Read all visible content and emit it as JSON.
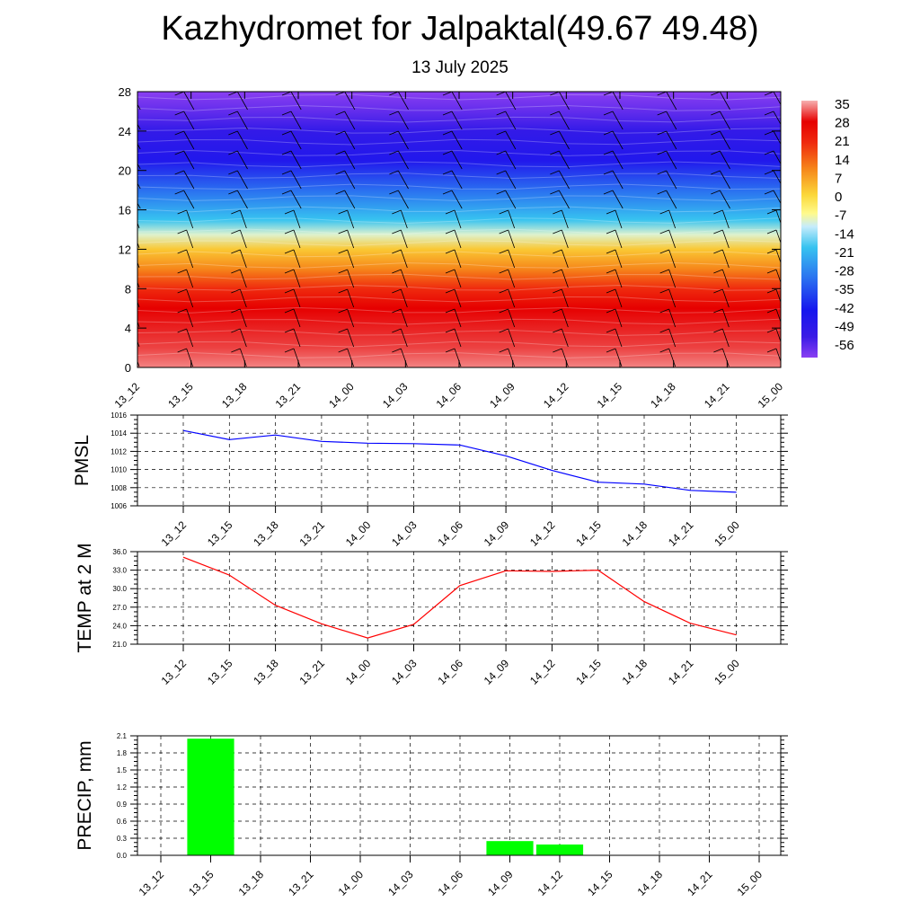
{
  "title": "Kazhydromet for Jalpaktal(49.67 49.48)",
  "subtitle": "13 July 2025",
  "time_labels": [
    "13_12",
    "13_15",
    "13_18",
    "13_21",
    "14_00",
    "14_03",
    "14_06",
    "14_09",
    "14_12",
    "14_15",
    "14_18",
    "14_21",
    "15_00"
  ],
  "chart_data": [
    {
      "type": "heatmap",
      "name": "cross-section",
      "x": [
        "13_12",
        "13_15",
        "13_18",
        "13_21",
        "14_00",
        "14_03",
        "14_06",
        "14_09",
        "14_12",
        "14_15",
        "14_18",
        "14_21",
        "15_00"
      ],
      "y_ticks": [
        0,
        4,
        8,
        12,
        16,
        20,
        24,
        28
      ],
      "ylim": [
        0,
        28
      ],
      "colorbar": {
        "labels": [
          "35",
          "28",
          "21",
          "14",
          "7",
          "0",
          "-7",
          "-14",
          "-21",
          "-28",
          "-35",
          "-42",
          "-49",
          "-56"
        ],
        "min": -60,
        "max": 38,
        "stops": [
          {
            "v": 38,
            "c": "#f7b0b0"
          },
          {
            "v": 30,
            "c": "#e60000"
          },
          {
            "v": 22,
            "c": "#ef2a0e"
          },
          {
            "v": 12,
            "c": "#f6861a"
          },
          {
            "v": 2,
            "c": "#fbd83a"
          },
          {
            "v": -5,
            "c": "#fffa8c"
          },
          {
            "v": -10,
            "c": "#c6ecfb"
          },
          {
            "v": -18,
            "c": "#37c3f0"
          },
          {
            "v": -30,
            "c": "#2a6ff0"
          },
          {
            "v": -42,
            "c": "#1616ee"
          },
          {
            "v": -52,
            "c": "#3a1be6"
          },
          {
            "v": -60,
            "c": "#8a3ff2"
          }
        ]
      },
      "vertical_profile": [
        {
          "level": 0,
          "value": 36
        },
        {
          "level": 2,
          "value": 33
        },
        {
          "level": 6,
          "value": 30
        },
        {
          "level": 8,
          "value": 22
        },
        {
          "level": 10,
          "value": 12
        },
        {
          "level": 12,
          "value": 4
        },
        {
          "level": 13.5,
          "value": -8
        },
        {
          "level": 15,
          "value": -18
        },
        {
          "level": 18,
          "value": -30
        },
        {
          "level": 21,
          "value": -45
        },
        {
          "level": 24,
          "value": -50
        },
        {
          "level": 26,
          "value": -56
        },
        {
          "level": 28,
          "value": -60
        }
      ]
    },
    {
      "type": "line",
      "ylabel": "PMSL",
      "categories": [
        "13_12",
        "13_15",
        "13_18",
        "13_21",
        "14_00",
        "14_03",
        "14_06",
        "14_09",
        "14_12",
        "14_15",
        "14_18",
        "14_21",
        "15_00"
      ],
      "values": [
        1014.3,
        1013.3,
        1013.8,
        1013.1,
        1012.9,
        1012.85,
        1012.7,
        1011.5,
        1009.9,
        1008.6,
        1008.4,
        1007.7,
        1007.5
      ],
      "ylim": [
        1006,
        1016
      ],
      "yticks": [
        "1006",
        "1008",
        "1010",
        "1012",
        "1014",
        "1016"
      ],
      "color": "#0000ff",
      "grid": true
    },
    {
      "type": "line",
      "ylabel": "TEMP at 2 M",
      "categories": [
        "13_12",
        "13_15",
        "13_18",
        "13_21",
        "14_00",
        "14_03",
        "14_06",
        "14_09",
        "14_12",
        "14_15",
        "14_18",
        "14_21",
        "15_00"
      ],
      "values": [
        35.1,
        32.2,
        27.3,
        24.3,
        22.0,
        24.2,
        30.5,
        32.9,
        32.8,
        33.0,
        27.9,
        24.4,
        22.5
      ],
      "ylim": [
        21,
        36
      ],
      "yticks": [
        "21.0",
        "24.0",
        "27.0",
        "30.0",
        "33.0",
        "36.0"
      ],
      "color": "#ff0000",
      "grid": true
    },
    {
      "type": "bar",
      "ylabel": "PRECIP, mm",
      "categories": [
        "13_12",
        "13_15",
        "13_18",
        "13_21",
        "14_00",
        "14_03",
        "14_06",
        "14_09",
        "14_12",
        "14_15",
        "14_18",
        "14_21",
        "15_00"
      ],
      "values": [
        0,
        2.05,
        0,
        0,
        0,
        0,
        0,
        0.25,
        0.19,
        0,
        0,
        0,
        0
      ],
      "ylim": [
        0,
        2.1
      ],
      "yticks": [
        "0.0",
        "0.3",
        "0.6",
        "0.9",
        "1.2",
        "1.5",
        "1.8",
        "2.1"
      ],
      "color": "#00ff00",
      "grid": true
    }
  ]
}
